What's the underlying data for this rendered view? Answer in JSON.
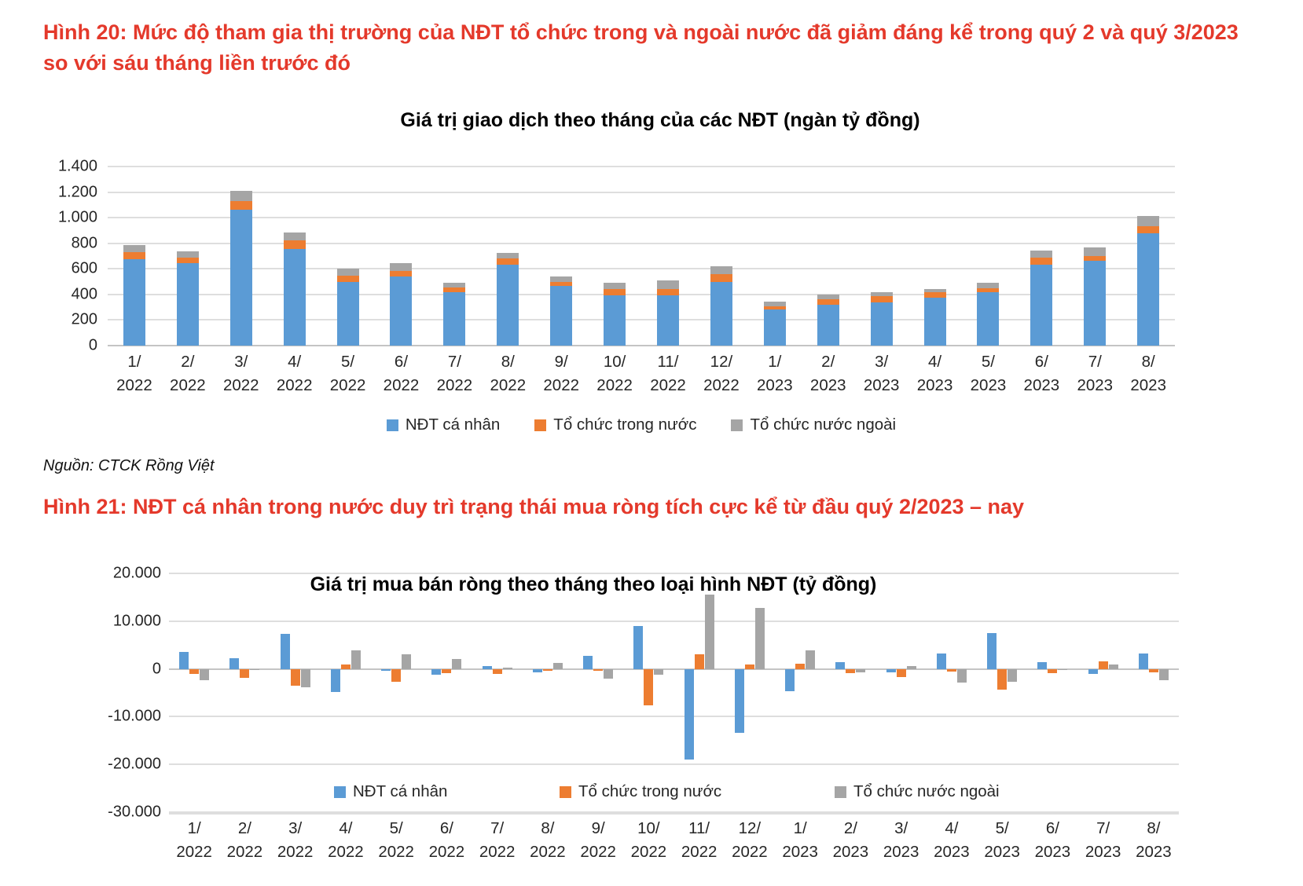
{
  "headings": {
    "figure20": "Hình 20: Mức độ tham gia thị trường của NĐT tổ chức trong và ngoài nước đã giảm đáng kể trong quý 2 và quý 3/2023 so với sáu tháng liền trước đó",
    "figure21": "Hình 21: NĐT cá nhân trong nước duy trì trạng thái mua ròng tích cực kể từ đầu quý 2/2023 – nay"
  },
  "source_note": "Nguồn: CTCK Rồng Việt",
  "colors": {
    "heading_red": "#e4392b",
    "individual_blue": "#5b9bd5",
    "domestic_org_orange": "#ed7d31",
    "foreign_org_gray": "#a5a5a5",
    "gridline": "#dedede"
  },
  "chart_data": [
    {
      "type": "bar",
      "stacked": true,
      "title": "Giá trị giao dịch theo tháng của các NĐT (ngàn tỷ đồng)",
      "categories": [
        "1/2022",
        "2/2022",
        "3/2022",
        "4/2022",
        "5/2022",
        "6/2022",
        "7/2022",
        "8/2022",
        "9/2022",
        "10/2022",
        "11/2022",
        "12/2022",
        "1/2023",
        "2/2023",
        "3/2023",
        "4/2023",
        "5/2023",
        "6/2023",
        "7/2023",
        "8/2023"
      ],
      "series": [
        {
          "name": "NĐT cá nhân",
          "color": "#5b9bd5",
          "values": [
            675,
            645,
            1065,
            755,
            500,
            540,
            420,
            630,
            465,
            395,
            395,
            500,
            280,
            320,
            340,
            375,
            420,
            630,
            665,
            880
          ]
        },
        {
          "name": "Tổ chức trong nước",
          "color": "#ed7d31",
          "values": [
            55,
            45,
            65,
            65,
            45,
            45,
            35,
            50,
            35,
            45,
            50,
            60,
            30,
            45,
            45,
            40,
            30,
            60,
            35,
            55
          ]
        },
        {
          "name": "Tổ chức nước ngoài",
          "color": "#a5a5a5",
          "values": [
            55,
            50,
            80,
            65,
            55,
            60,
            35,
            45,
            40,
            50,
            65,
            60,
            35,
            35,
            35,
            30,
            40,
            55,
            70,
            80
          ]
        }
      ],
      "ylim": [
        0,
        1400
      ],
      "ytick_step": 200,
      "ytick_values": [
        1400,
        1200,
        1000,
        800,
        600,
        400,
        200,
        0
      ],
      "ytick_labels": [
        "1.400",
        "1.200",
        "1.000",
        "800",
        "600",
        "400",
        "200",
        "0"
      ],
      "grid": true,
      "legend_position": "bottom-center"
    },
    {
      "type": "bar",
      "grouped": true,
      "title": "Giá trị mua bán ròng theo tháng theo loại hình NĐT (tỷ đồng)",
      "categories": [
        "1/2022",
        "2/2022",
        "3/2022",
        "4/2022",
        "5/2022",
        "6/2022",
        "7/2022",
        "8/2022",
        "9/2022",
        "10/2022",
        "11/2022",
        "12/2022",
        "1/2023",
        "2/2023",
        "3/2023",
        "4/2023",
        "5/2023",
        "6/2023",
        "7/2023",
        "8/2023"
      ],
      "series": [
        {
          "name": "NĐT cá nhân",
          "color": "#5b9bd5",
          "values": [
            3550,
            2250,
            7400,
            -4800,
            -400,
            -1200,
            650,
            -700,
            2800,
            8900,
            -18900,
            -13400,
            -4700,
            1350,
            -700,
            3200,
            7500,
            1400,
            -1100,
            3300
          ]
        },
        {
          "name": "Tổ chức trong nước",
          "color": "#ed7d31",
          "values": [
            -1100,
            -1900,
            -3500,
            1000,
            -2700,
            -850,
            -1100,
            -450,
            -400,
            -7700,
            3100,
            850,
            1100,
            -900,
            -1700,
            -550,
            -4300,
            -950,
            1500,
            -750
          ]
        },
        {
          "name": "Tổ chức nước ngoài",
          "color": "#a5a5a5",
          "values": [
            -2300,
            -150,
            -3900,
            3900,
            3100,
            2000,
            300,
            1300,
            -2100,
            -1300,
            15500,
            12800,
            3900,
            -800,
            650,
            -2850,
            -2700,
            -200,
            850,
            -2400
          ]
        }
      ],
      "ylim": [
        -30000,
        20000
      ],
      "ytick_step": 10000,
      "ytick_values": [
        20000,
        10000,
        0,
        -10000,
        -20000,
        -30000
      ],
      "ytick_labels": [
        "20.000",
        "10.000",
        "0",
        "-10.000",
        "-20.000",
        "-30.000"
      ],
      "grid": true,
      "legend_position": "inside-bottom"
    }
  ]
}
